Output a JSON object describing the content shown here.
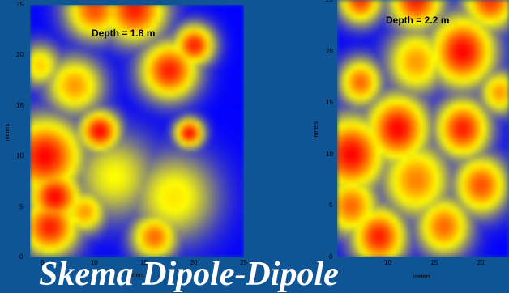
{
  "slide_title": "Skema Dipole-Dipole",
  "colors": {
    "background": "#0f5596",
    "low": "#0000ff",
    "mid": "#ffff00",
    "high": "#ff0000"
  },
  "chart_data": [
    {
      "type": "heatmap",
      "title": "Depth = 1.8 m",
      "xlabel": "meters",
      "ylabel": "meters",
      "xlim": [
        3.5,
        25
      ],
      "ylim": [
        0,
        25
      ],
      "x_ticks": [
        5,
        10,
        15,
        20,
        25
      ],
      "y_ticks": [
        0,
        5,
        10,
        15,
        20,
        25
      ],
      "colormap": [
        "#0000ff",
        "#ffff00",
        "#ff0000"
      ],
      "hotspots": [
        {
          "x": 5,
          "y": 10,
          "level": 1.0,
          "spread": 2.6
        },
        {
          "x": 6,
          "y": 6,
          "level": 1.0,
          "spread": 1.8
        },
        {
          "x": 5.5,
          "y": 3,
          "level": 0.95,
          "spread": 2.0
        },
        {
          "x": 10.5,
          "y": 12.5,
          "level": 1.0,
          "spread": 1.4
        },
        {
          "x": 19.5,
          "y": 12.3,
          "level": 1.0,
          "spread": 1.0
        },
        {
          "x": 17.5,
          "y": 18.5,
          "level": 0.95,
          "spread": 2.0
        },
        {
          "x": 20,
          "y": 21,
          "level": 0.95,
          "spread": 1.4
        },
        {
          "x": 14,
          "y": 24.5,
          "level": 0.95,
          "spread": 2.2
        },
        {
          "x": 10,
          "y": 24.5,
          "level": 0.85,
          "spread": 2.0
        },
        {
          "x": 16,
          "y": 2,
          "level": 0.8,
          "spread": 1.6
        },
        {
          "x": 9,
          "y": 4.5,
          "level": 0.7,
          "spread": 1.5
        },
        {
          "x": 8,
          "y": 17,
          "level": 0.7,
          "spread": 2.0
        },
        {
          "x": 4.5,
          "y": 19,
          "level": 0.6,
          "spread": 1.5
        },
        {
          "x": 18,
          "y": 6,
          "level": 0.55,
          "spread": 3.0
        },
        {
          "x": 12,
          "y": 8,
          "level": 0.5,
          "spread": 3.0
        }
      ]
    },
    {
      "type": "heatmap",
      "title": "Depth = 2.2 m",
      "xlabel": "meters",
      "ylabel": "meters",
      "xlim": [
        4.5,
        23
      ],
      "ylim": [
        0,
        25
      ],
      "x_ticks": [
        10,
        15,
        20
      ],
      "y_ticks": [
        0,
        5,
        10,
        15,
        20,
        25
      ],
      "colormap": [
        "#0000ff",
        "#ffff00",
        "#ff0000"
      ],
      "hotspots": [
        {
          "x": 18,
          "y": 20,
          "level": 1.0,
          "spread": 2.4
        },
        {
          "x": 11,
          "y": 12.5,
          "level": 1.0,
          "spread": 2.3
        },
        {
          "x": 18,
          "y": 12.5,
          "level": 0.95,
          "spread": 2.0
        },
        {
          "x": 6,
          "y": 10,
          "level": 1.0,
          "spread": 2.5
        },
        {
          "x": 9,
          "y": 2,
          "level": 0.95,
          "spread": 2.0
        },
        {
          "x": 16,
          "y": 3,
          "level": 0.8,
          "spread": 2.0
        },
        {
          "x": 7,
          "y": 17,
          "level": 0.8,
          "spread": 1.6
        },
        {
          "x": 13,
          "y": 25,
          "level": 0.95,
          "spread": 2.0
        },
        {
          "x": 7,
          "y": 25,
          "level": 0.9,
          "spread": 1.6
        },
        {
          "x": 21,
          "y": 25,
          "level": 0.9,
          "spread": 2.0
        },
        {
          "x": 13,
          "y": 7.5,
          "level": 0.75,
          "spread": 2.5
        },
        {
          "x": 20,
          "y": 7,
          "level": 0.85,
          "spread": 2.0
        },
        {
          "x": 6,
          "y": 5,
          "level": 0.8,
          "spread": 2.0
        },
        {
          "x": 13,
          "y": 19,
          "level": 0.7,
          "spread": 2.2
        },
        {
          "x": 22,
          "y": 16,
          "level": 0.7,
          "spread": 1.5
        }
      ]
    }
  ]
}
